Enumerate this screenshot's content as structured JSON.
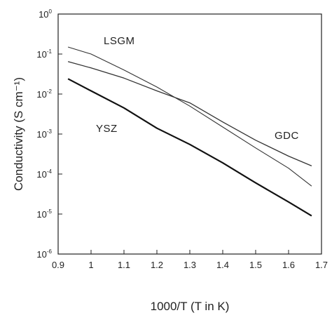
{
  "chart_data": {
    "type": "line",
    "title": "",
    "xlabel": "1000/T (T in K)",
    "ylabel": "Conductivity (S cm⁻¹)",
    "xlim": [
      0.9,
      1.7
    ],
    "ylim_log10": [
      -6,
      0
    ],
    "y_scale": "log",
    "grid": false,
    "x_ticks": [
      "0.9",
      "1",
      "1.1",
      "1.2",
      "1.3",
      "1.4",
      "1.5",
      "1.6",
      "1.7"
    ],
    "y_ticks": [
      {
        "base": "10",
        "exp": "0"
      },
      {
        "base": "10",
        "exp": "-1"
      },
      {
        "base": "10",
        "exp": "-2"
      },
      {
        "base": "10",
        "exp": "-3"
      },
      {
        "base": "10",
        "exp": "-4"
      },
      {
        "base": "10",
        "exp": "-5"
      },
      {
        "base": "10",
        "exp": "-6"
      }
    ],
    "series": [
      {
        "name": "LSGM",
        "x": [
          0.93,
          1.0,
          1.1,
          1.2,
          1.3,
          1.4,
          1.5,
          1.6,
          1.67
        ],
        "y": [
          0.15,
          0.1,
          0.04,
          0.015,
          0.005,
          0.0015,
          0.00045,
          0.00014,
          5e-05
        ]
      },
      {
        "name": "GDC",
        "x": [
          0.93,
          1.0,
          1.1,
          1.2,
          1.3,
          1.4,
          1.5,
          1.6,
          1.67
        ],
        "y": [
          0.065,
          0.045,
          0.025,
          0.012,
          0.006,
          0.002,
          0.0007,
          0.00028,
          0.00016
        ]
      },
      {
        "name": "YSZ",
        "x": [
          0.93,
          1.0,
          1.1,
          1.2,
          1.3,
          1.4,
          1.5,
          1.6,
          1.67
        ],
        "y": [
          0.024,
          0.012,
          0.0045,
          0.0014,
          0.00055,
          0.00019,
          6e-05,
          2e-05,
          9e-06
        ]
      }
    ]
  }
}
